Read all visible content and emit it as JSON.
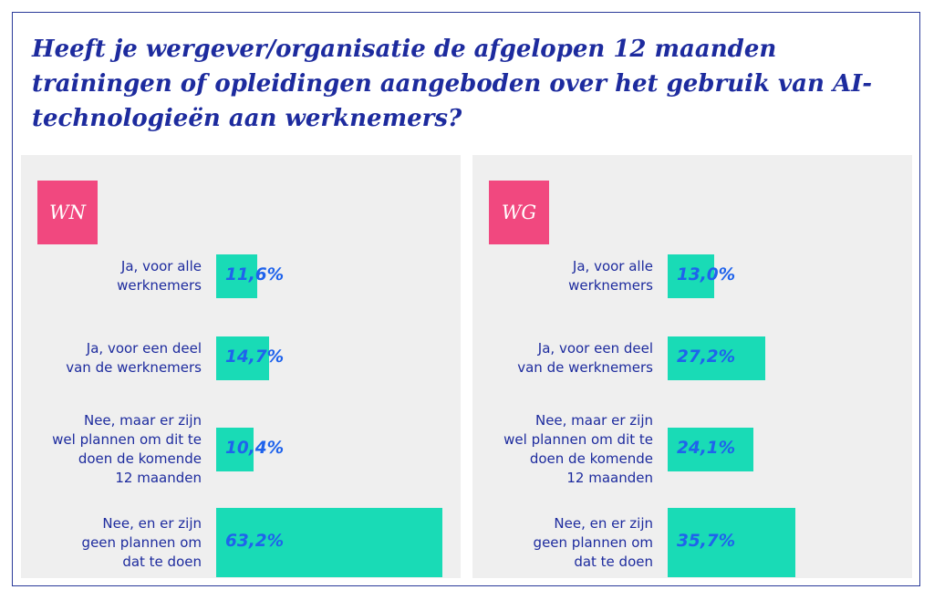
{
  "title": "Heeft je wergever/organisatie de afgelopen 12 maanden trainingen of opleidingen aangeboden over het gebruik van AI-technologieën aan werknemers?",
  "colors": {
    "frame": "#2a3a99",
    "title": "#1d2b9e",
    "badge": "#f1487f",
    "bar": "#19dbb6",
    "value": "#1f63ec",
    "panel_bg": "#efefef"
  },
  "chart_data": [
    {
      "type": "bar",
      "orientation": "horizontal",
      "badge": "WN",
      "categories": [
        [
          "Ja, voor alle",
          "werknemers"
        ],
        [
          "Ja, voor een deel",
          "van de werknemers"
        ],
        [
          "Nee, maar er zijn",
          "wel plannen om dit te",
          "doen de komende",
          "12 maanden"
        ],
        [
          "Nee, en er zijn",
          "geen plannen om",
          "dat te doen"
        ]
      ],
      "values": [
        11.6,
        14.7,
        10.4,
        63.2
      ],
      "value_labels": [
        "11,6%",
        "14,7%",
        "10,4%",
        "63,2%"
      ],
      "unit": "%"
    },
    {
      "type": "bar",
      "orientation": "horizontal",
      "badge": "WG",
      "categories": [
        [
          "Ja, voor alle",
          "werknemers"
        ],
        [
          "Ja, voor een deel",
          "van de werknemers"
        ],
        [
          "Nee, maar er zijn",
          "wel plannen om dit te",
          "doen de komende",
          "12 maanden"
        ],
        [
          "Nee, en er zijn",
          "geen plannen om",
          "dat te doen"
        ]
      ],
      "values": [
        13.0,
        27.2,
        24.1,
        35.7
      ],
      "value_labels": [
        "13,0%",
        "27,2%",
        "24,1%",
        "35,7%"
      ],
      "unit": "%"
    }
  ]
}
